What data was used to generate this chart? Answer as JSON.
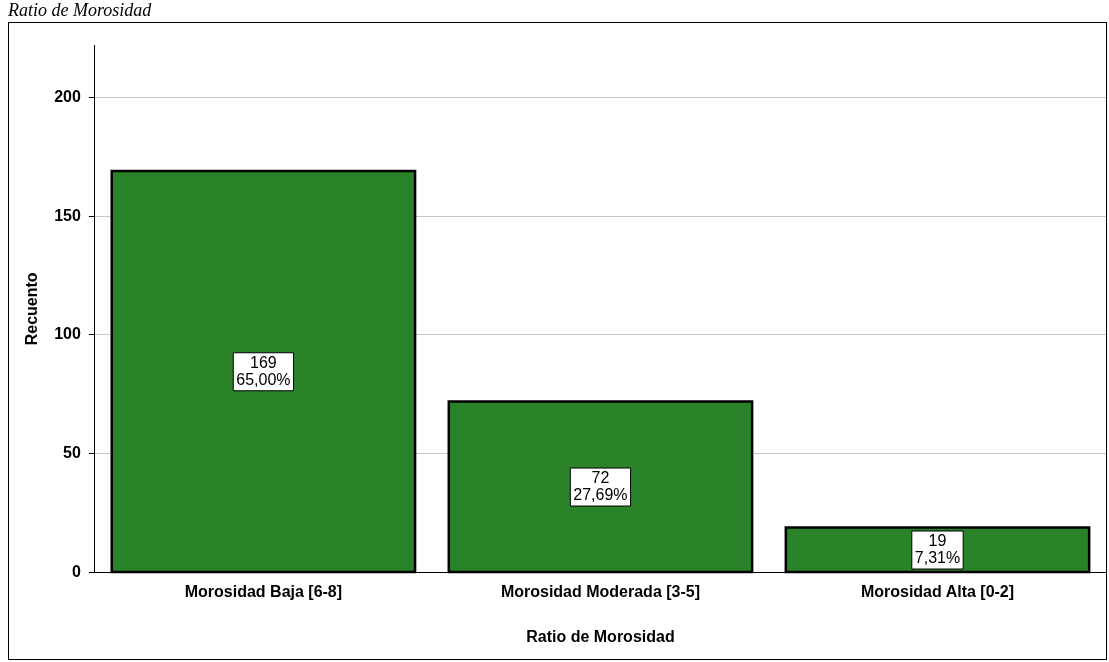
{
  "chart_data": {
    "type": "bar",
    "title": "Ratio de Morosidad",
    "xlabel": "Ratio de Morosidad",
    "ylabel": "Recuento",
    "categories": [
      "Morosidad Baja [6-8]",
      "Morosidad Moderada [3-5]",
      "Morosidad Alta [0-2]"
    ],
    "values": [
      169,
      72,
      19
    ],
    "color": "#2a8229",
    "value_labels": [
      "169\n65,00%",
      "72\n27,69%",
      "19\n7,31%"
    ],
    "ylim": [
      0,
      222
    ],
    "yticks": [
      0,
      50,
      100,
      150,
      200
    ],
    "grid": "y",
    "legend": false
  }
}
